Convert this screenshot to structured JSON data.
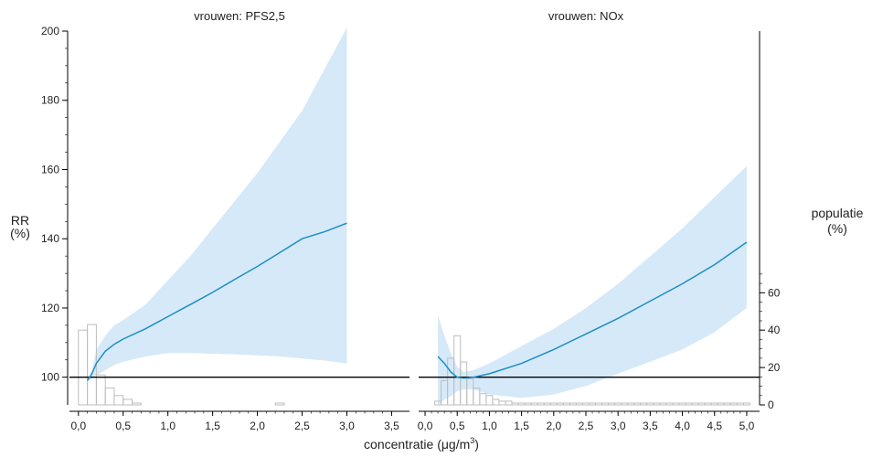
{
  "chart_data": {
    "type": "line",
    "ylabel": "RR",
    "ylabel_unit": "(%)",
    "y2label": "populatie",
    "y2label_unit": "(%)",
    "xlabel_prefix": "concentratie (μg/m",
    "xlabel_sup": "3",
    "xlabel_suffix": ")",
    "ylim": [
      92,
      200
    ],
    "y_ticks": [
      100,
      120,
      140,
      160,
      180,
      200
    ],
    "y2lim": [
      0,
      200
    ],
    "y2_ticks": [
      0,
      20,
      40,
      60
    ],
    "reference_line": 100,
    "colors": {
      "line": "#1c8ec4",
      "band": "#d6e9f8",
      "hist": "#bdbdbd",
      "ref": "#000000"
    },
    "panels": [
      {
        "title": "vrouwen: PFS2,5",
        "xlim": [
          -0.1,
          3.7
        ],
        "x_ticks": [
          0.0,
          0.5,
          1.0,
          1.5,
          2.0,
          2.5,
          3.0,
          3.5
        ],
        "x_tick_labels": [
          "0,0",
          "0,5",
          "1,0",
          "1,5",
          "2,0",
          "2,5",
          "3,0",
          "3,5"
        ],
        "series": [
          {
            "x": [
              0.1,
              0.15,
              0.2,
              0.3,
              0.4,
              0.5,
              0.75,
              1.0,
              1.25,
              1.5,
              1.75,
              2.0,
              2.25,
              2.5,
              2.75,
              3.0
            ],
            "y": [
              99,
              101,
              104,
              107.5,
              109.5,
              111,
              114,
              117.5,
              121,
              124.5,
              128.3,
              132,
              136,
              140,
              142,
              144.5
            ],
            "lower": [
              99,
              99.5,
              100.5,
              102,
              103.5,
              104.5,
              106,
              107,
              107,
              106.8,
              106.6,
              106.3,
              106,
              105.4,
              104.8,
              104
            ],
            "upper": [
              99,
              102,
              108,
              112,
              115,
              116.5,
              121,
              128,
              135,
              143,
              151,
              159,
              168,
              177,
              189,
              201
            ]
          }
        ],
        "histogram": {
          "x": [
            0.05,
            0.15,
            0.25,
            0.35,
            0.45,
            0.55,
            0.65,
            2.25
          ],
          "values": [
            40,
            43,
            16,
            9,
            5,
            3,
            1,
            1
          ],
          "width": 0.1
        }
      },
      {
        "title": "vrouwen: NOx",
        "xlim": [
          -0.1,
          5.2
        ],
        "x_ticks": [
          0.0,
          0.5,
          1.0,
          1.5,
          2.0,
          2.5,
          3.0,
          3.5,
          4.0,
          4.5,
          5.0
        ],
        "x_tick_labels": [
          "0,0",
          "0,5",
          "1,0",
          "1,5",
          "2,0",
          "2,5",
          "3,0",
          "3,5",
          "4,0",
          "4,5",
          "5,0"
        ],
        "series": [
          {
            "x": [
              0.2,
              0.3,
              0.4,
              0.5,
              0.6,
              0.75,
              1.0,
              1.5,
              2.0,
              2.5,
              3.0,
              3.5,
              4.0,
              4.5,
              5.0
            ],
            "y": [
              106,
              104,
              101.5,
              100,
              99.7,
              100,
              101,
              104,
              108,
              112.5,
              117,
              122,
              127,
              132.5,
              139
            ],
            "lower": [
              92,
              93.5,
              94.5,
              96,
              96.5,
              96.5,
              95,
              94,
              95,
              97.5,
              101,
              104.5,
              108,
              113,
              120
            ],
            "upper": [
              118,
              112,
              107,
              103,
              101.5,
              102,
              104,
              109,
              114,
              120,
              127,
              135,
              143,
              152,
              161
            ]
          }
        ],
        "histogram": {
          "x": [
            0.2,
            0.3,
            0.4,
            0.5,
            0.6,
            0.7,
            0.8,
            0.9,
            1.0,
            1.1,
            1.2,
            1.3,
            1.4,
            1.5,
            1.6,
            1.7,
            1.8,
            1.9,
            2.0,
            2.1,
            2.2,
            2.3,
            2.4,
            2.5,
            2.6,
            2.7,
            2.8,
            2.9,
            3.0,
            3.1,
            3.2,
            3.3,
            3.4,
            3.5,
            3.6,
            3.7,
            3.8,
            3.9,
            4.0,
            4.1,
            4.2,
            4.3,
            4.4,
            4.5,
            4.6,
            4.7,
            4.8,
            4.9,
            5.0
          ],
          "values": [
            2,
            13,
            25,
            37,
            23,
            14,
            9,
            6,
            5,
            3,
            2,
            2,
            1,
            1,
            1,
            1,
            1,
            1,
            1,
            1,
            1,
            1,
            1,
            1,
            1,
            1,
            1,
            1,
            1,
            1,
            1,
            1,
            1,
            1,
            1,
            1,
            1,
            1,
            1,
            1,
            1,
            1,
            1,
            1,
            1,
            1,
            1,
            1,
            1
          ],
          "width": 0.1
        }
      }
    ]
  }
}
